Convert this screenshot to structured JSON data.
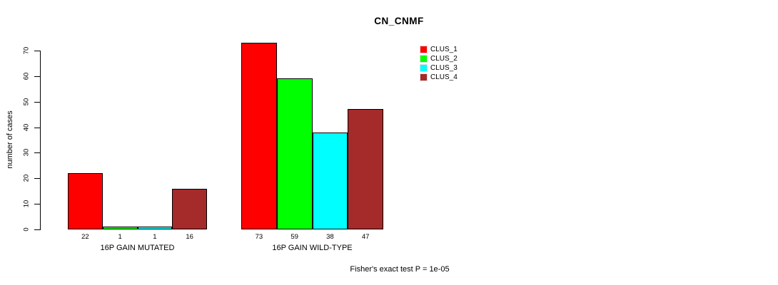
{
  "chart_data": {
    "type": "bar",
    "title": "CN_CNMF",
    "ylabel": "number of cases",
    "xlabel": "",
    "ylim": [
      0,
      70
    ],
    "yticks": [
      0,
      10,
      20,
      30,
      40,
      50,
      60,
      70
    ],
    "grid": false,
    "legend_position": "top-right",
    "categories": [
      "16P GAIN MUTATED",
      "16P GAIN WILD-TYPE"
    ],
    "series": [
      {
        "name": "CLUS_1",
        "color": "#FF0000",
        "values": [
          22,
          73
        ]
      },
      {
        "name": "CLUS_2",
        "color": "#00FF00",
        "values": [
          1,
          59
        ]
      },
      {
        "name": "CLUS_3",
        "color": "#00FFFF",
        "values": [
          1,
          38
        ]
      },
      {
        "name": "CLUS_4",
        "color": "#A52A2A",
        "values": [
          16,
          47
        ]
      }
    ],
    "bar_value_labels": [
      [
        22,
        1,
        1,
        16
      ],
      [
        73,
        59,
        38,
        47
      ]
    ],
    "annotation": "Fisher's exact test P = 1e-05"
  }
}
